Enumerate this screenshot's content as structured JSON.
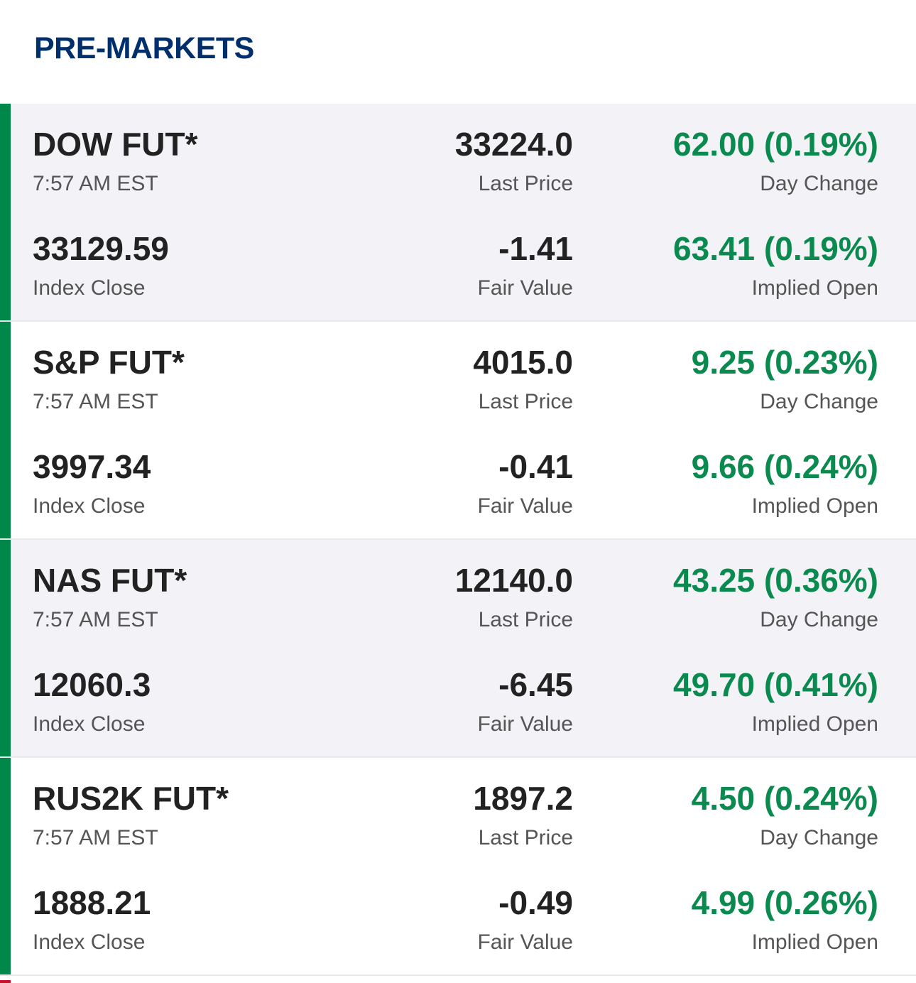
{
  "header": {
    "title": "PRE-MARKETS"
  },
  "colors": {
    "title": "#002f6c",
    "accent_bar": "#00874a",
    "positive": "#0b8a4f",
    "row_shade": "#f3f3f7"
  },
  "labels": {
    "last_price": "Last Price",
    "day_change": "Day Change",
    "index_close": "Index Close",
    "fair_value": "Fair Value",
    "implied_open": "Implied Open"
  },
  "rows": [
    {
      "name": "DOW FUT*",
      "time": "7:57 AM EST",
      "last_price": "33224.0",
      "day_change": "62.00 (0.19%)",
      "index_close": "33129.59",
      "fair_value": "-1.41",
      "implied_open": "63.41 (0.19%)"
    },
    {
      "name": "S&P FUT*",
      "time": "7:57 AM EST",
      "last_price": "4015.0",
      "day_change": "9.25 (0.23%)",
      "index_close": "3997.34",
      "fair_value": "-0.41",
      "implied_open": "9.66 (0.24%)"
    },
    {
      "name": "NAS FUT*",
      "time": "7:57 AM EST",
      "last_price": "12140.0",
      "day_change": "43.25 (0.36%)",
      "index_close": "12060.3",
      "fair_value": "-6.45",
      "implied_open": "49.70 (0.41%)"
    },
    {
      "name": "RUS2K FUT*",
      "time": "7:57 AM EST",
      "last_price": "1897.2",
      "day_change": "4.50 (0.24%)",
      "index_close": "1888.21",
      "fair_value": "-0.49",
      "implied_open": "4.99 (0.26%)"
    }
  ]
}
